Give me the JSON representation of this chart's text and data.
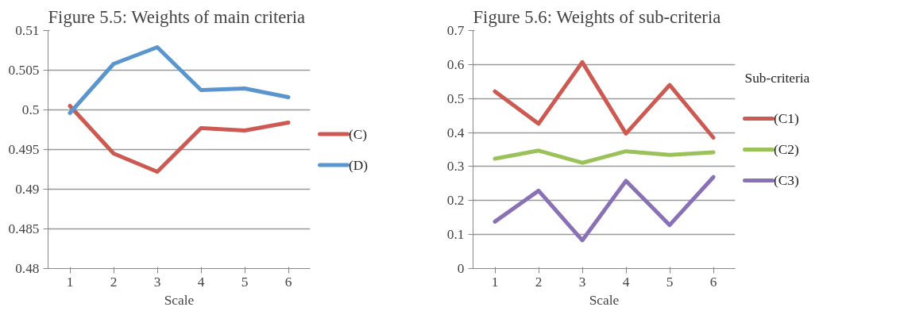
{
  "chart_data": [
    {
      "type": "line",
      "title": "Figure 5.5: Weights of main criteria",
      "xlabel": "Scale",
      "categories": [
        "1",
        "2",
        "3",
        "4",
        "5",
        "6"
      ],
      "ylim": [
        0.48,
        0.51
      ],
      "yticks": [
        0.48,
        0.485,
        0.49,
        0.495,
        0.5,
        0.505,
        0.51
      ],
      "grid": "y",
      "legend": "right",
      "series": [
        {
          "name": "(C)",
          "color": "#cc5a52",
          "values": [
            0.5005,
            0.4945,
            0.4922,
            0.4977,
            0.4974,
            0.4984
          ]
        },
        {
          "name": "(D)",
          "color": "#5b95cd",
          "values": [
            0.4996,
            0.5058,
            0.5079,
            0.5025,
            0.5027,
            0.5016
          ]
        }
      ]
    },
    {
      "type": "line",
      "title": "Figure 5.6: Weights of sub-criteria",
      "xlabel": "Scale",
      "legend_title": "Sub-criteria",
      "categories": [
        "1",
        "2",
        "3",
        "4",
        "5",
        "6"
      ],
      "ylim": [
        0,
        0.7
      ],
      "yticks": [
        0,
        0.1,
        0.2,
        0.3,
        0.4,
        0.5,
        0.6,
        0.7
      ],
      "grid": "y",
      "legend": "right",
      "series": [
        {
          "name": "(C1)",
          "color": "#cc5a52",
          "values": [
            0.521,
            0.426,
            0.607,
            0.397,
            0.54,
            0.385
          ]
        },
        {
          "name": "(C2)",
          "color": "#9bc25a",
          "values": [
            0.323,
            0.347,
            0.311,
            0.345,
            0.334,
            0.342
          ]
        },
        {
          "name": "(C3)",
          "color": "#8a70b4",
          "values": [
            0.138,
            0.229,
            0.083,
            0.258,
            0.128,
            0.269
          ]
        }
      ]
    }
  ]
}
